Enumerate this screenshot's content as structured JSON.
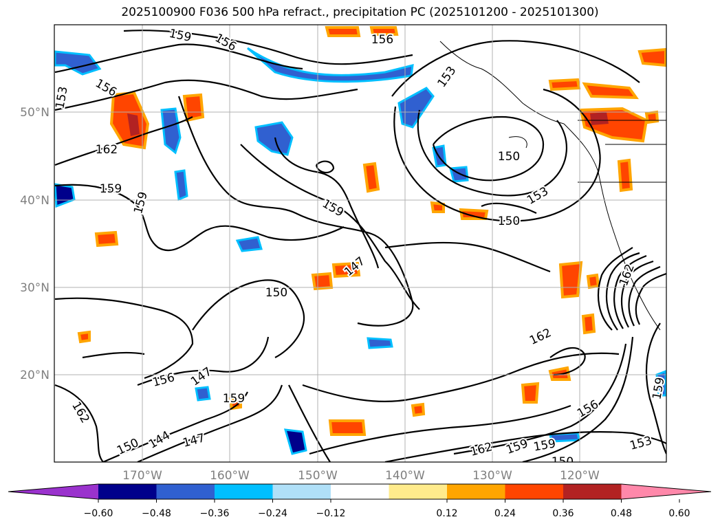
{
  "title": "2025100900 F036 500 hPa refract., precipitation PC (2025101200 - 2025101300)",
  "map": {
    "lat_labels": [
      "50°N",
      "40°N",
      "30°N",
      "20°N"
    ],
    "lon_labels": [
      "170°W",
      "160°W",
      "150°W",
      "140°W",
      "130°W",
      "120°W"
    ]
  },
  "contour_labels": [
    "159",
    "156",
    "156",
    "156",
    "153",
    "153",
    "162",
    "159",
    "159",
    "150",
    "153",
    "159",
    "150",
    "147",
    "150",
    "156",
    "147",
    "159",
    "162",
    "150",
    "144",
    "147",
    "156",
    "162",
    "162",
    "159",
    "159",
    "150",
    "153",
    "159",
    "162"
  ],
  "colorbar": {
    "ticks": [
      "−0.60",
      "−0.48",
      "−0.36",
      "−0.24",
      "−0.12",
      "0.12",
      "0.24",
      "0.36",
      "0.48",
      "0.60"
    ],
    "colors": [
      "#9a32cd",
      "#00008b",
      "#3060d0",
      "#00bfff",
      "#b0e0f8",
      "#ffffff",
      "#ffeb8c",
      "#ffa500",
      "#ff4500",
      "#b22222",
      "#ff88aa"
    ]
  },
  "colors": {
    "neg_dark": "#00008b",
    "neg_mid": "#3060d0",
    "neg_light": "#00bfff",
    "neg_pale": "#b0e0f8",
    "pos_pale": "#ffeb8c",
    "pos_mid": "#ffa500",
    "pos_strong": "#ff4500",
    "pos_dark": "#b22222",
    "pos_max": "#ff88aa"
  }
}
